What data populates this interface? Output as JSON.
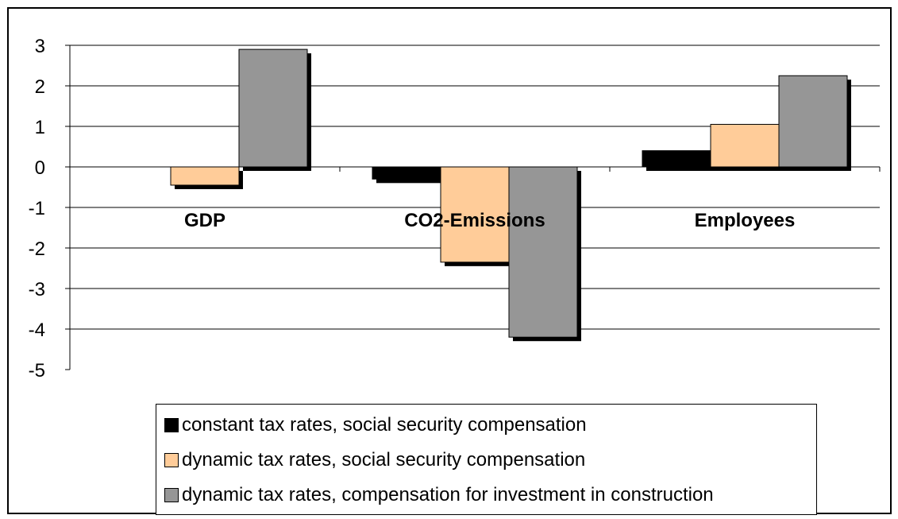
{
  "chart_data": {
    "type": "bar",
    "categories": [
      "GDP",
      "CO2-Emissions",
      "Employees"
    ],
    "series": [
      {
        "name": "constant tax rates, social security compensation",
        "values": [
          0.0,
          -0.3,
          0.4
        ],
        "color": "#000000"
      },
      {
        "name": "dynamic tax rates, social security compensation",
        "values": [
          -0.45,
          -2.35,
          1.05
        ],
        "color": "#FFCC99"
      },
      {
        "name": "dynamic tax rates, compensation for investment in construction",
        "values": [
          2.9,
          -4.2,
          2.25
        ],
        "color": "#969696"
      }
    ],
    "yticks": [
      "3",
      "2",
      "1",
      "0",
      "-1",
      "-2",
      "-3",
      "-4",
      "-5"
    ],
    "ylim": [
      -5,
      3
    ],
    "grid": true,
    "legend_position": "bottom",
    "title": "",
    "xlabel": "",
    "ylabel": ""
  }
}
